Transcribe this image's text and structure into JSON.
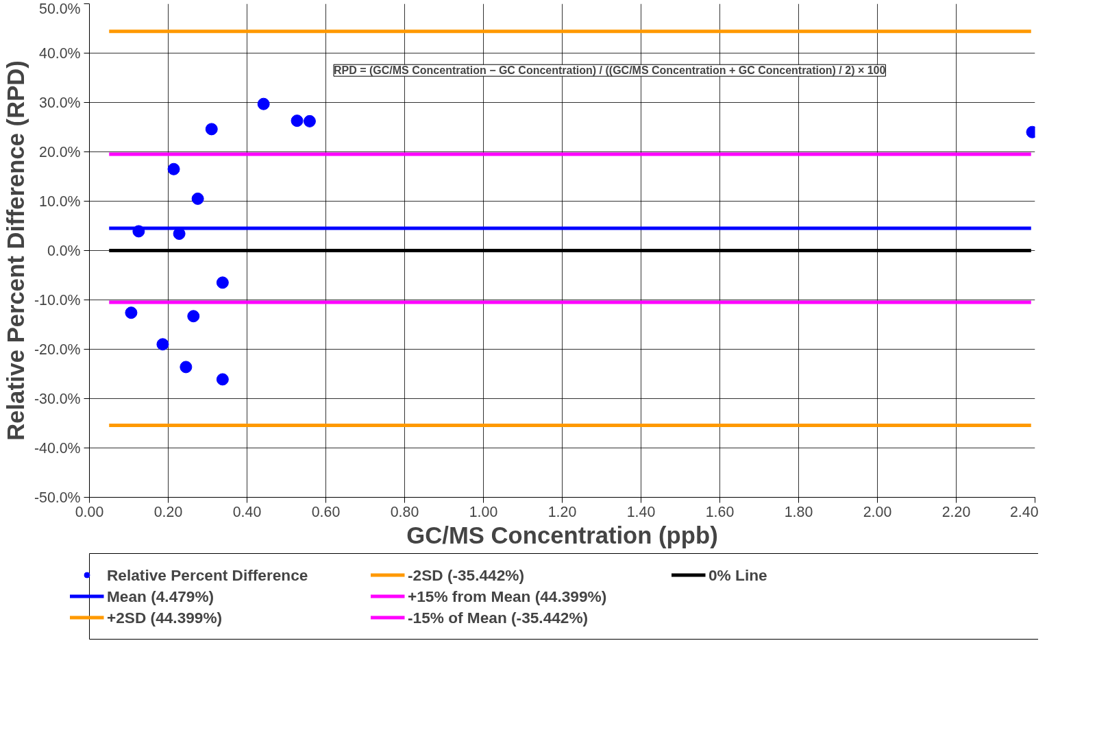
{
  "chart_data": {
    "type": "scatter",
    "xlabel": "GC/MS Concentration (ppb)",
    "ylabel": "Relative Percent Difference (RPD)",
    "xlim": [
      0,
      2.4
    ],
    "xticks": [
      {
        "value": 0,
        "label": "0.00"
      },
      {
        "value": 0.2,
        "label": "0.20"
      },
      {
        "value": 0.4,
        "label": "0.40"
      },
      {
        "value": 0.6,
        "label": "0.60"
      },
      {
        "value": 0.8,
        "label": "0.80"
      },
      {
        "value": 1.0,
        "label": "1.00"
      },
      {
        "value": 1.2,
        "label": "1.20"
      },
      {
        "value": 1.4,
        "label": "1.40"
      },
      {
        "value": 1.6,
        "label": "1.60"
      },
      {
        "value": 1.8,
        "label": "1.80"
      },
      {
        "value": 2.0,
        "label": "2.00"
      },
      {
        "value": 2.2,
        "label": "2.20"
      },
      {
        "value": 2.4,
        "label": "2.40"
      }
    ],
    "ylim": [
      -50,
      50
    ],
    "yticks": [
      {
        "value": -50,
        "label": "-50.0%"
      },
      {
        "value": -40,
        "label": "-40.0%"
      },
      {
        "value": -30,
        "label": "-30.0%"
      },
      {
        "value": -20,
        "label": "-20.0%"
      },
      {
        "value": -10,
        "label": "-10.0%"
      },
      {
        "value": 0,
        "label": "0.0%"
      },
      {
        "value": 10,
        "label": "10.0%"
      },
      {
        "value": 20,
        "label": "20.0%"
      },
      {
        "value": 30,
        "label": "30.0%"
      },
      {
        "value": 40,
        "label": "40.0%"
      },
      {
        "value": 50,
        "label": "50.0%"
      }
    ],
    "grid": true,
    "legend": "bottom",
    "line_style": "solid",
    "annotations": [
      "RPD = (GC/MS Concentration − GC Concentration) / ((GC/MS Concentration + GC Concentration) / 2) × 100"
    ],
    "series": [
      {
        "name": "Relative Percent Difference",
        "marker": "circle",
        "color": "#0000ff",
        "x": [
          0.125,
          0.228,
          0.214,
          0.275,
          0.31,
          0.442,
          0.527,
          0.559,
          2.393,
          0.338,
          0.106,
          0.186,
          0.264,
          0.245,
          0.338
        ],
        "values": [
          3.9,
          3.4,
          16.5,
          10.5,
          24.6,
          29.7,
          26.3,
          26.2,
          24.0,
          -6.5,
          -12.6,
          -19.0,
          -13.3,
          -23.6,
          -26.1
        ]
      },
      {
        "name": "Mean (4.479%)",
        "type": "line",
        "color": "#0000ff",
        "x": [
          0.05,
          2.39
        ],
        "values": [
          4.5,
          4.5
        ]
      },
      {
        "name": "+2SD (44.399%)",
        "type": "line",
        "color": "#ff9900",
        "x": [
          0.05,
          2.39
        ],
        "values": [
          44.4,
          44.4
        ]
      },
      {
        "name": "-2SD (-35.442%)",
        "type": "line",
        "color": "#ff9900",
        "x": [
          0.05,
          2.39
        ],
        "values": [
          -35.4,
          -35.4
        ]
      },
      {
        "name": "+15% from Mean (44.399%)",
        "type": "line",
        "color": "#ff00ff",
        "x": [
          0.05,
          2.39
        ],
        "values": [
          19.5,
          19.5
        ]
      },
      {
        "name": "-15% of Mean (-35.442%)",
        "type": "line",
        "color": "#ff00ff",
        "x": [
          0.05,
          2.39
        ],
        "values": [
          -10.5,
          -10.5
        ]
      },
      {
        "name": "0% Line",
        "type": "line",
        "color": "#000000",
        "x": [
          0.05,
          2.39
        ],
        "values": [
          0,
          0
        ]
      }
    ]
  }
}
